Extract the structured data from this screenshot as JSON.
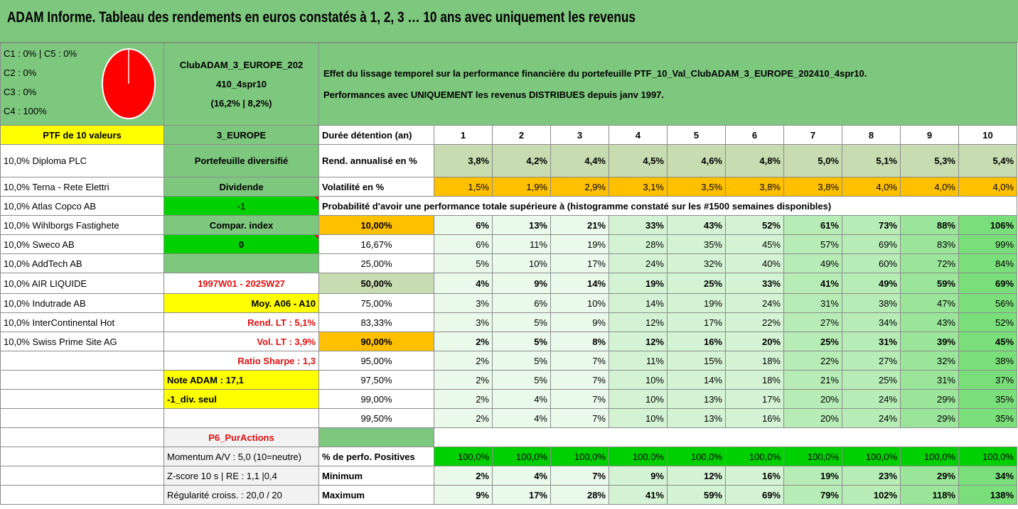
{
  "title": "ADAM Informe. Tableau des rendements en euros constatés à 1, 2, 3 … 10 ans avec uniquement les revenus",
  "cat_lines": [
    "C1 : 0% | C5 : 0%",
    "C2 : 0%",
    "C3 : 0%",
    "C4 : 100%"
  ],
  "club_name_1": "ClubADAM_3_EUROPE_202",
  "club_name_2": "410_4spr10",
  "club_name_3": "(16,2% | 8,2%)",
  "effect_line_1": "Effet du lissage temporel sur la performance financière du portefeuille PTF_10_Val_ClubADAM_3_EUROPE_202410_4spr10.",
  "effect_line_2": "Performances avec UNIQUEMENT les revenus DISTRIBUES depuis janv 1997.",
  "ptf_label": "PTF de 10 valeurs",
  "region": "3_EUROPE",
  "duration_label": "Durée détention (an)",
  "years": [
    "1",
    "2",
    "3",
    "4",
    "5",
    "6",
    "7",
    "8",
    "9",
    "10"
  ],
  "holdings": [
    "10,0% Diploma PLC",
    "10,0% Terna - Rete Elettri",
    "10,0% Atlas Copco AB",
    "10,0% Wihlborgs Fastighete",
    "10,0% Sweco AB",
    "10,0% AddTech AB",
    "10,0% AIR LIQUIDE",
    "10,0% Indutrade AB",
    "10,0% InterContinental Hot",
    "10,0% Swiss Prime Site AG"
  ],
  "side": {
    "diversified": "Portefeuille diversifié",
    "dividende": "Dividende",
    "minus_one": "-1",
    "compar_index": "Compar. index",
    "zero": "0",
    "period": "1997W01 - 2025W27",
    "moy": "Moy. A06 - A10",
    "rend_lt": "Rend. LT : 5,1%",
    "vol_lt": "Vol. LT : 3,9%",
    "sharpe": "Ratio Sharpe : 1,3",
    "note": "Note ADAM : 17,1",
    "div_seul": "-1_div. seul",
    "p6": "P6_PurActions",
    "momentum": "Momentum A/V : 5,0 (10=neutre)",
    "zscore": "Z-score 10 s | RE : 1,1 |0,4",
    "regularite": "Régularité croiss. : 20,0 / 20"
  },
  "rend_label": "Rend. annualisé en %",
  "rend_values": [
    "3,8%",
    "4,2%",
    "4,4%",
    "4,5%",
    "4,6%",
    "4,8%",
    "5,0%",
    "5,1%",
    "5,3%",
    "5,4%"
  ],
  "vol_label": "Volatilité en %",
  "vol_values": [
    "1,5%",
    "1,9%",
    "2,9%",
    "3,1%",
    "3,5%",
    "3,8%",
    "3,8%",
    "4,0%",
    "4,0%",
    "4,0%"
  ],
  "prob_label": "Probabilité d'avoir une performance totale supérieure à (histogramme constaté sur les #1500 semaines disponibles)",
  "prob_rows": [
    {
      "pct": "10,00%",
      "values": [
        "6%",
        "13%",
        "21%",
        "33%",
        "43%",
        "52%",
        "61%",
        "73%",
        "88%",
        "106%"
      ]
    },
    {
      "pct": "16,67%",
      "values": [
        "6%",
        "11%",
        "19%",
        "28%",
        "35%",
        "45%",
        "57%",
        "69%",
        "83%",
        "99%"
      ]
    },
    {
      "pct": "25,00%",
      "values": [
        "5%",
        "10%",
        "17%",
        "24%",
        "32%",
        "40%",
        "49%",
        "60%",
        "72%",
        "84%"
      ]
    },
    {
      "pct": "50,00%",
      "values": [
        "4%",
        "9%",
        "14%",
        "19%",
        "25%",
        "33%",
        "41%",
        "49%",
        "59%",
        "69%"
      ]
    },
    {
      "pct": "75,00%",
      "values": [
        "3%",
        "6%",
        "10%",
        "14%",
        "19%",
        "24%",
        "31%",
        "38%",
        "47%",
        "56%"
      ]
    },
    {
      "pct": "83,33%",
      "values": [
        "3%",
        "5%",
        "9%",
        "12%",
        "17%",
        "22%",
        "27%",
        "34%",
        "43%",
        "52%"
      ]
    },
    {
      "pct": "90,00%",
      "values": [
        "2%",
        "5%",
        "8%",
        "12%",
        "16%",
        "20%",
        "25%",
        "31%",
        "39%",
        "45%"
      ]
    },
    {
      "pct": "95,00%",
      "values": [
        "2%",
        "5%",
        "7%",
        "11%",
        "15%",
        "18%",
        "22%",
        "27%",
        "32%",
        "38%"
      ]
    },
    {
      "pct": "97,50%",
      "values": [
        "2%",
        "5%",
        "7%",
        "10%",
        "14%",
        "18%",
        "21%",
        "25%",
        "31%",
        "37%"
      ]
    },
    {
      "pct": "99,00%",
      "values": [
        "2%",
        "4%",
        "7%",
        "10%",
        "13%",
        "17%",
        "20%",
        "24%",
        "29%",
        "35%"
      ]
    },
    {
      "pct": "99,50%",
      "values": [
        "2%",
        "4%",
        "7%",
        "10%",
        "13%",
        "16%",
        "20%",
        "24%",
        "29%",
        "35%"
      ]
    }
  ],
  "positive_label": "% de perfo. Positives",
  "positive_values": [
    "100,0%",
    "100,0%",
    "100,0%",
    "100,0%",
    "100,0%",
    "100,0%",
    "100,0%",
    "100,0%",
    "100,0%",
    "100,0%"
  ],
  "min_label": "Minimum",
  "min_values": [
    "2%",
    "4%",
    "7%",
    "9%",
    "12%",
    "16%",
    "19%",
    "23%",
    "29%",
    "34%"
  ],
  "max_label": "Maximum",
  "max_values": [
    "9%",
    "17%",
    "28%",
    "41%",
    "59%",
    "69%",
    "79%",
    "102%",
    "118%",
    "138%"
  ],
  "pie": {
    "fill": "#ff0000",
    "c4_share": 1.0
  }
}
